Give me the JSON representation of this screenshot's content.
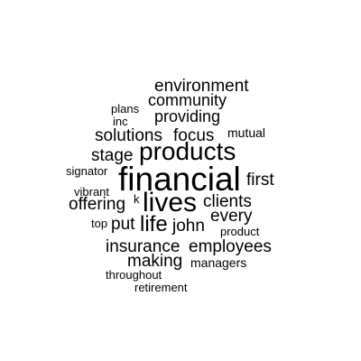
{
  "word_cloud": {
    "text_color": "#000000",
    "words": [
      {
        "text": "environment"
      },
      {
        "text": "community"
      },
      {
        "text": "plans"
      },
      {
        "text": "providing"
      },
      {
        "text": "inc"
      },
      {
        "text": "mutual"
      },
      {
        "text": "solutions"
      },
      {
        "text": "focus"
      },
      {
        "text": "products"
      },
      {
        "text": "stage"
      },
      {
        "text": "signator"
      },
      {
        "text": "financial"
      },
      {
        "text": "first"
      },
      {
        "text": "vibrant"
      },
      {
        "text": "lives"
      },
      {
        "text": "clients"
      },
      {
        "text": "offering"
      },
      {
        "text": "k"
      },
      {
        "text": "every"
      },
      {
        "text": "top"
      },
      {
        "text": "put"
      },
      {
        "text": "life"
      },
      {
        "text": "john"
      },
      {
        "text": "product"
      },
      {
        "text": "insurance"
      },
      {
        "text": "employees"
      },
      {
        "text": "making"
      },
      {
        "text": "managers"
      },
      {
        "text": "throughout"
      },
      {
        "text": "retirement"
      }
    ]
  }
}
